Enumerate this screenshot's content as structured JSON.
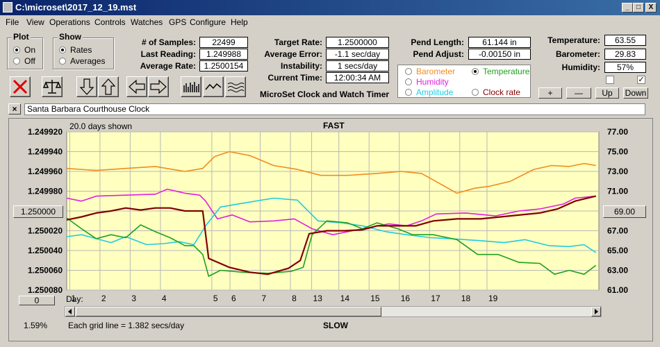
{
  "window": {
    "title": "C:\\microset\\2017_12_19.mst",
    "min": "_",
    "max": "□",
    "close": "X"
  },
  "menu": [
    "File",
    "View",
    "Operations",
    "Controls",
    "Watches",
    "GPS",
    "Configure",
    "Help"
  ],
  "plot_group": {
    "title": "Plot",
    "options": [
      "On",
      "Off"
    ],
    "selected": "On"
  },
  "show_group": {
    "title": "Show",
    "options": [
      "Rates",
      "Averages"
    ],
    "selected": "Rates"
  },
  "stats": {
    "samples_label": "# of Samples:",
    "samples": "22499",
    "last_label": "Last Reading:",
    "last": "1.249988",
    "avg_label": "Average Rate:",
    "avg": "1.2500154",
    "target_label": "Target Rate:",
    "target": "1.2500000",
    "avgerr_label": "Average Error:",
    "avgerr": "-1.1 sec/day",
    "instab_label": "Instability:",
    "instab": "1 secs/day",
    "time_label": "Current Time:",
    "time": "12:00:34 AM",
    "pendlen_label": "Pend Length:",
    "pendlen": "61.144 in",
    "pendadj_label": "Pend Adjust:",
    "pendadj": "-0.00150 in",
    "temp_label": "Temperature:",
    "temp": "63.55",
    "baro_label": "Barometer:",
    "baro": "29.83",
    "hum_label": "Humidity:",
    "hum": "57%"
  },
  "app_name": "MicroSet Clock and Watch Timer",
  "sensor_options": [
    {
      "label": "Barometer",
      "color": "#f08c1e",
      "selected": false
    },
    {
      "label": "Temperature",
      "color": "#1ea01e",
      "selected": true
    },
    {
      "label": "Humidity",
      "color": "#e01ee0",
      "selected": false
    },
    {
      "label": "Amplitude",
      "color": "#1ecce0",
      "selected": false
    },
    {
      "label": "Clock rate",
      "color": "#800000",
      "selected": false
    }
  ],
  "adjust_buttons": [
    "+",
    "—",
    "Up",
    "Down"
  ],
  "checkbox_right": "✓",
  "clock_name": "Santa Barbara Courthouse Clock",
  "clear_button": "×",
  "chart": {
    "days_shown": "20.0 days shown",
    "top_label": "FAST",
    "bottom_label": "SLOW",
    "left_button": "1.250000",
    "right_button": "69.00",
    "zero_button": "0",
    "day_label": "Day:",
    "percent": "1.59%",
    "grid_note": "Each grid line = 1.382 secs/day"
  },
  "chart_data": {
    "type": "line",
    "left_axis": {
      "ticks": [
        "1.249920",
        "1.249940",
        "1.249960",
        "1.249980",
        "1.250000",
        "1.250020",
        "1.250040",
        "1.250060",
        "1.250080"
      ],
      "min": 1.24992,
      "max": 1.25008
    },
    "right_axis": {
      "ticks": [
        "77.00",
        "75.00",
        "73.00",
        "71.00",
        "69.00",
        "67.00",
        "65.00",
        "63.00",
        "61.00"
      ],
      "min": 61,
      "max": 77
    },
    "x_ticks": [
      "1",
      "2",
      "3",
      "4",
      "5",
      "6",
      "7",
      "8",
      "13",
      "14",
      "15",
      "16",
      "17",
      "18",
      "19"
    ],
    "series": [
      {
        "color": "#f08c1e",
        "axis": "right",
        "points": [
          [
            0,
            73.3
          ],
          [
            1,
            73.1
          ],
          [
            2,
            73.3
          ],
          [
            3,
            73.5
          ],
          [
            4,
            73.0
          ],
          [
            4.6,
            73.3
          ],
          [
            5,
            74.5
          ],
          [
            5.5,
            75.0
          ],
          [
            6.2,
            74.6
          ],
          [
            7,
            73.6
          ],
          [
            7.8,
            73.2
          ],
          [
            8.6,
            72.6
          ],
          [
            9.5,
            72.6
          ],
          [
            10.5,
            72.8
          ],
          [
            11.3,
            73.0
          ],
          [
            12,
            72.8
          ],
          [
            12.6,
            71.8
          ],
          [
            13.2,
            70.8
          ],
          [
            13.8,
            71.3
          ],
          [
            14.3,
            71.5
          ],
          [
            15,
            72.0
          ],
          [
            15.8,
            73.2
          ],
          [
            16.4,
            73.6
          ],
          [
            17,
            73.5
          ],
          [
            17.5,
            73.8
          ],
          [
            17.9,
            73.6
          ]
        ]
      },
      {
        "color": "#e01ee0",
        "axis": "right",
        "points": [
          [
            0,
            70.3
          ],
          [
            0.5,
            70.0
          ],
          [
            1,
            70.5
          ],
          [
            2,
            70.6
          ],
          [
            3,
            70.7
          ],
          [
            3.4,
            71.2
          ],
          [
            4,
            70.8
          ],
          [
            4.5,
            70.6
          ],
          [
            4.7,
            70.0
          ],
          [
            5.1,
            68.2
          ],
          [
            5.6,
            68.6
          ],
          [
            6.2,
            67.9
          ],
          [
            7,
            68.0
          ],
          [
            7.7,
            68.2
          ],
          [
            8.3,
            67.2
          ],
          [
            9,
            66.6
          ],
          [
            10,
            67.2
          ],
          [
            10.9,
            67.7
          ],
          [
            11.5,
            67.5
          ],
          [
            12,
            68.0
          ],
          [
            12.5,
            68.7
          ],
          [
            13.5,
            68.8
          ],
          [
            14.5,
            68.5
          ],
          [
            15.3,
            69.0
          ],
          [
            16,
            69.2
          ],
          [
            16.8,
            69.7
          ],
          [
            17.2,
            70.3
          ],
          [
            17.9,
            70.5
          ]
        ]
      },
      {
        "color": "#1ecce0",
        "axis": "right",
        "points": [
          [
            0,
            66.4
          ],
          [
            0.5,
            66.6
          ],
          [
            1,
            66.2
          ],
          [
            1.5,
            65.8
          ],
          [
            2,
            66.4
          ],
          [
            2.7,
            65.6
          ],
          [
            3.3,
            65.7
          ],
          [
            3.8,
            65.9
          ],
          [
            4.3,
            65.6
          ],
          [
            4.7,
            67.5
          ],
          [
            5.2,
            69.4
          ],
          [
            6,
            69.8
          ],
          [
            7,
            70.3
          ],
          [
            7.8,
            70.1
          ],
          [
            8.5,
            68.0
          ],
          [
            9.3,
            67.8
          ],
          [
            10,
            67.5
          ],
          [
            10.8,
            66.9
          ],
          [
            11.5,
            66.6
          ],
          [
            12.3,
            66.3
          ],
          [
            13,
            66.2
          ],
          [
            14,
            66.0
          ],
          [
            14.8,
            65.8
          ],
          [
            15.5,
            66.1
          ],
          [
            16.3,
            65.5
          ],
          [
            17,
            65.4
          ],
          [
            17.5,
            65.6
          ],
          [
            17.9,
            64.8
          ]
        ]
      },
      {
        "color": "#1ea01e",
        "axis": "right",
        "points": [
          [
            0,
            68.3
          ],
          [
            0.5,
            67.2
          ],
          [
            1,
            66.2
          ],
          [
            1.5,
            66.6
          ],
          [
            2,
            66.3
          ],
          [
            2.5,
            67.6
          ],
          [
            3,
            66.9
          ],
          [
            3.5,
            66.3
          ],
          [
            4,
            65.5
          ],
          [
            4.3,
            65.5
          ],
          [
            4.6,
            64.6
          ],
          [
            4.8,
            62.4
          ],
          [
            5.2,
            63.0
          ],
          [
            6,
            62.8
          ],
          [
            6.8,
            62.7
          ],
          [
            7.6,
            62.9
          ],
          [
            8,
            63.3
          ],
          [
            8.3,
            66.6
          ],
          [
            8.8,
            68.0
          ],
          [
            9.5,
            67.8
          ],
          [
            10,
            67.2
          ],
          [
            10.5,
            67.8
          ],
          [
            11.2,
            67.2
          ],
          [
            11.7,
            66.6
          ],
          [
            12.4,
            66.6
          ],
          [
            13.2,
            66.1
          ],
          [
            13.9,
            64.6
          ],
          [
            14.6,
            64.6
          ],
          [
            15.3,
            63.8
          ],
          [
            16,
            63.7
          ],
          [
            16.5,
            62.6
          ],
          [
            17,
            63.0
          ],
          [
            17.5,
            62.6
          ],
          [
            17.9,
            63.5
          ]
        ]
      },
      {
        "color": "#800000",
        "axis": "left",
        "points": [
          [
            0,
            1.250009
          ],
          [
            0.5,
            1.250006
          ],
          [
            1,
            1.250002
          ],
          [
            1.5,
            1.25
          ],
          [
            2,
            1.249997
          ],
          [
            2.5,
            1.249999
          ],
          [
            3,
            1.249997
          ],
          [
            3.5,
            1.249997
          ],
          [
            4,
            1.25
          ],
          [
            4.6,
            1.25
          ],
          [
            4.8,
            1.250048
          ],
          [
            5.5,
            1.250057
          ],
          [
            6.2,
            1.250062
          ],
          [
            6.8,
            1.250064
          ],
          [
            7.5,
            1.250058
          ],
          [
            7.9,
            1.25005
          ],
          [
            8.2,
            1.250023
          ],
          [
            8.8,
            1.25002
          ],
          [
            9.4,
            1.25002
          ],
          [
            10,
            1.250019
          ],
          [
            10.5,
            1.250015
          ],
          [
            11.2,
            1.250015
          ],
          [
            11.8,
            1.250015
          ],
          [
            12.4,
            1.25001
          ],
          [
            13.2,
            1.250008
          ],
          [
            14,
            1.250008
          ],
          [
            15,
            1.250005
          ],
          [
            16,
            1.250002
          ],
          [
            16.6,
            1.249998
          ],
          [
            17.2,
            1.24999
          ],
          [
            17.9,
            1.249985
          ]
        ]
      }
    ]
  }
}
